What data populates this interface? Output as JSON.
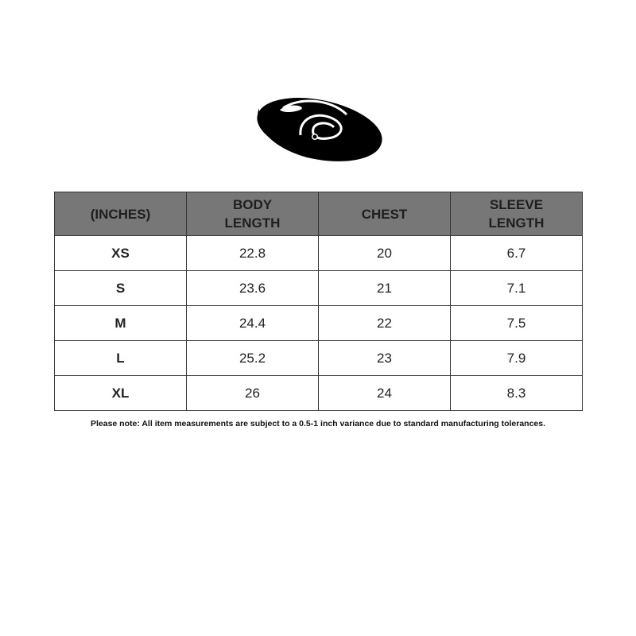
{
  "headers": [
    "(INCHES)",
    "BODY\nLENGTH",
    "CHEST",
    "SLEEVE\nLENGTH"
  ],
  "rows": [
    [
      "XS",
      "22.8",
      "20",
      "6.7"
    ],
    [
      "S",
      "23.6",
      "21",
      "7.1"
    ],
    [
      "M",
      "24.4",
      "22",
      "7.5"
    ],
    [
      "L",
      "25.2",
      "23",
      "7.9"
    ],
    [
      "XL",
      "26",
      "24",
      "8.3"
    ]
  ],
  "colors": {
    "header_bg": "#777777",
    "border": "#333333"
  },
  "note": "Please note: All item measurements are subject to a 0.5-1 inch variance due to standard manufacturing tolerances."
}
